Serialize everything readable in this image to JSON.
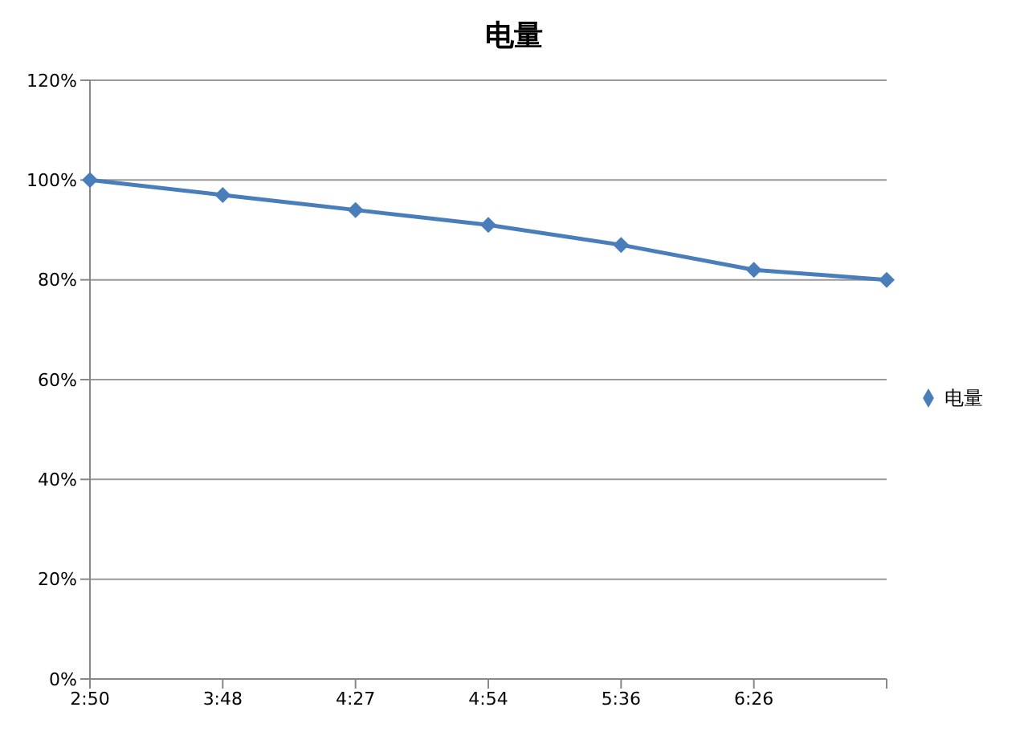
{
  "chart_data": {
    "type": "line",
    "title": "电量",
    "categories": [
      "2:50",
      "3:48",
      "4:27",
      "4:54",
      "5:36",
      "6:26",
      null
    ],
    "series": [
      {
        "name": "电量",
        "color": "#4a7ebb",
        "values": [
          100,
          97,
          94,
          91,
          87,
          82,
          80
        ]
      }
    ],
    "ylim": [
      0,
      120
    ],
    "yticks": [
      {
        "value": 0,
        "label": "0%"
      },
      {
        "value": 20,
        "label": "20%"
      },
      {
        "value": 40,
        "label": "40%"
      },
      {
        "value": 60,
        "label": "60%"
      },
      {
        "value": 80,
        "label": "80%"
      },
      {
        "value": 100,
        "label": "100%"
      },
      {
        "value": 120,
        "label": "120%"
      }
    ],
    "grid": "y",
    "legend": "right",
    "marker": "diamond",
    "line_style": "solid"
  }
}
